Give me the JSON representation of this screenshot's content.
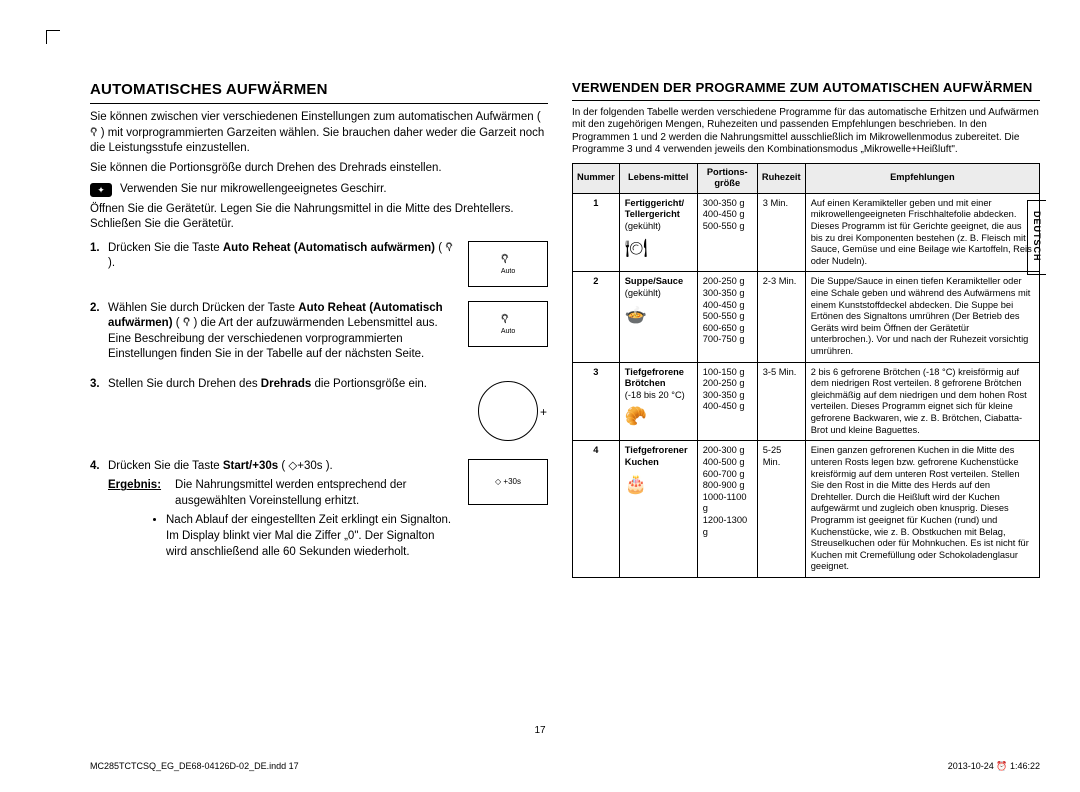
{
  "lang_tab": "DEUTSCH",
  "page_number": "17",
  "footer_left": "MC285TCTCSQ_EG_DE68-04126D-02_DE.indd   17",
  "footer_right": "2013-10-24   ⏰ 1:46:22",
  "left": {
    "heading": "AUTOMATISCHES AUFWÄRMEN",
    "intro1": "Sie können zwischen vier verschiedenen Einstellungen zum automatischen Aufwärmen ( 𖡊 ) mit vorprogrammierten Garzeiten wählen. Sie brauchen daher weder die Garzeit noch die Leistungsstufe einzustellen.",
    "intro2": "Sie können die Portionsgröße durch Drehen des Drehrads einstellen.",
    "note": "Verwenden Sie nur mikrowellengeeignetes Geschirr.",
    "intro3": "Öffnen Sie die Gerätetür. Legen Sie die Nahrungsmittel in die Mitte des Drehtellers. Schließen Sie die Gerätetür.",
    "step1_a": "Drücken Sie die Taste ",
    "step1_b": "Auto Reheat (Automatisch aufwärmen)",
    "step1_c": " ( 𖡊 ).",
    "fig1": "Auto",
    "step2_a": "Wählen Sie durch Drücken der Taste ",
    "step2_b": "Auto Reheat (Automatisch aufwärmen)",
    "step2_c": " ( 𖡊 ) die Art der aufzuwärmenden Lebensmittel aus. Eine Beschreibung der verschiedenen vorprogrammierten Einstellungen finden Sie in der Tabelle auf der nächsten Seite.",
    "fig2": "Auto",
    "step3_a": "Stellen Sie durch Drehen des ",
    "step3_b": "Drehrads",
    "step3_c": " die Portionsgröße ein.",
    "step4_a": "Drücken Sie die Taste ",
    "step4_b": "Start/+30s",
    "step4_c": " ( ◇+30s ).",
    "fig4": "◇ +30s",
    "result_label": "Ergebnis:",
    "result_text": "Die Nahrungsmittel werden entsprechend der ausgewählten Voreinstellung erhitzt.",
    "result_bullet": "Nach Ablauf der eingestellten Zeit erklingt ein Signalton. Im Display blinkt vier Mal die Ziffer „0\". Der Signalton wird anschließend alle 60 Sekunden wiederholt."
  },
  "right": {
    "heading": "VERWENDEN DER PROGRAMME ZUM AUTOMATISCHEN AUFWÄRMEN",
    "intro": "In der folgenden Tabelle werden verschiedene Programme für das automatische Erhitzen und Aufwärmen mit den zugehörigen Mengen, Ruhezeiten und passenden Empfehlungen beschrieben. In den Programmen 1 und 2 werden die Nahrungsmittel ausschließlich im Mikrowellenmodus zubereitet. Die Programme 3 und 4 verwenden jeweils den Kombinationsmodus „Mikrowelle+Heißluft\".",
    "th_num": "Nummer",
    "th_food": "Lebens-mittel",
    "th_port": "Portions-größe",
    "th_rest": "Ruhezeit",
    "th_rec": "Empfehlungen",
    "rows": [
      {
        "n": "1",
        "food_b": "Fertiggericht/\nTellergericht",
        "food_n": "(gekühlt)",
        "icon": "🍽",
        "port": "300-350 g\n400-450 g\n500-550 g",
        "rest": "3 Min.",
        "rec": "Auf einen Keramikteller geben und mit einer mikrowellengeeigneten Frischhaltefolie abdecken. Dieses Programm ist für Gerichte geeignet, die aus bis zu drei Komponenten bestehen (z. B. Fleisch mit Sauce, Gemüse und eine Beilage wie Kartoffeln, Reis oder Nudeln)."
      },
      {
        "n": "2",
        "food_b": "Suppe/Sauce",
        "food_n": "(gekühlt)",
        "icon": "🍲",
        "port": "200-250 g\n300-350 g\n400-450 g\n500-550 g\n600-650 g\n700-750 g",
        "rest": "2-3 Min.",
        "rec": "Die Suppe/Sauce in einen tiefen Keramikteller oder eine Schale geben und während des Aufwärmens mit einem Kunststoffdeckel abdecken. Die Suppe bei Ertönen des Signaltons umrühren (Der Betrieb des Geräts wird beim Öffnen der Gerätetür unterbrochen.). Vor und nach der Ruhezeit vorsichtig umrühren."
      },
      {
        "n": "3",
        "food_b": "Tiefgefrorene Brötchen",
        "food_n": "(-18 bis 20 °C)",
        "icon": "🥐",
        "port": "100-150 g\n200-250 g\n300-350 g\n400-450 g",
        "rest": "3-5 Min.",
        "rec": "2 bis 6 gefrorene Brötchen (-18 °C) kreisförmig auf dem niedrigen Rost verteilen. 8 gefrorene Brötchen gleichmäßig auf dem niedrigen und dem hohen Rost verteilen. Dieses Programm eignet sich für kleine gefrorene Backwaren, wie z. B. Brötchen, Ciabatta-Brot und kleine Baguettes."
      },
      {
        "n": "4",
        "food_b": "Tiefgefrorener Kuchen",
        "food_n": "",
        "icon": "🎂",
        "port": "200-300 g\n400-500 g\n600-700 g\n800-900 g\n1000-1100 g\n1200-1300 g",
        "rest": "5-25 Min.",
        "rec": "Einen ganzen gefrorenen Kuchen in die Mitte des unteren Rosts legen bzw. gefrorene Kuchenstücke kreisförmig auf dem unteren Rost verteilen. Stellen Sie den Rost in die Mitte des Herds auf den Drehteller. Durch die Heißluft wird der Kuchen aufgewärmt und zugleich oben knusprig. Dieses Programm ist geeignet für Kuchen (rund) und Kuchenstücke, wie z. B. Obstkuchen mit Belag, Streuselkuchen oder für Mohnkuchen. Es ist nicht für Kuchen mit Cremefüllung oder Schokoladenglasur geeignet."
      }
    ]
  }
}
